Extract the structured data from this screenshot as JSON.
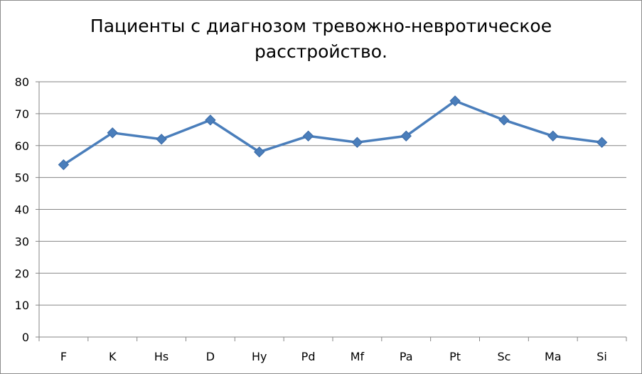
{
  "chart_data": {
    "type": "line",
    "title_lines": [
      "Пациенты с диагнозом тревожно-невротическое",
      "расстройство."
    ],
    "categories": [
      "F",
      "K",
      "Hs",
      "D",
      "Hy",
      "Pd",
      "Mf",
      "Pa",
      "Pt",
      "Sc",
      "Ma",
      "Si"
    ],
    "series": [
      {
        "values": [
          54,
          64,
          62,
          68,
          58,
          63,
          61,
          63,
          74,
          68,
          63,
          61
        ]
      }
    ],
    "ylim": [
      0,
      80
    ],
    "yticks": [
      0,
      10,
      20,
      30,
      40,
      50,
      60,
      70,
      80
    ],
    "grid": true,
    "colors": {
      "series": "#4a7ebb",
      "grid": "#868686",
      "axis": "#868686"
    }
  }
}
